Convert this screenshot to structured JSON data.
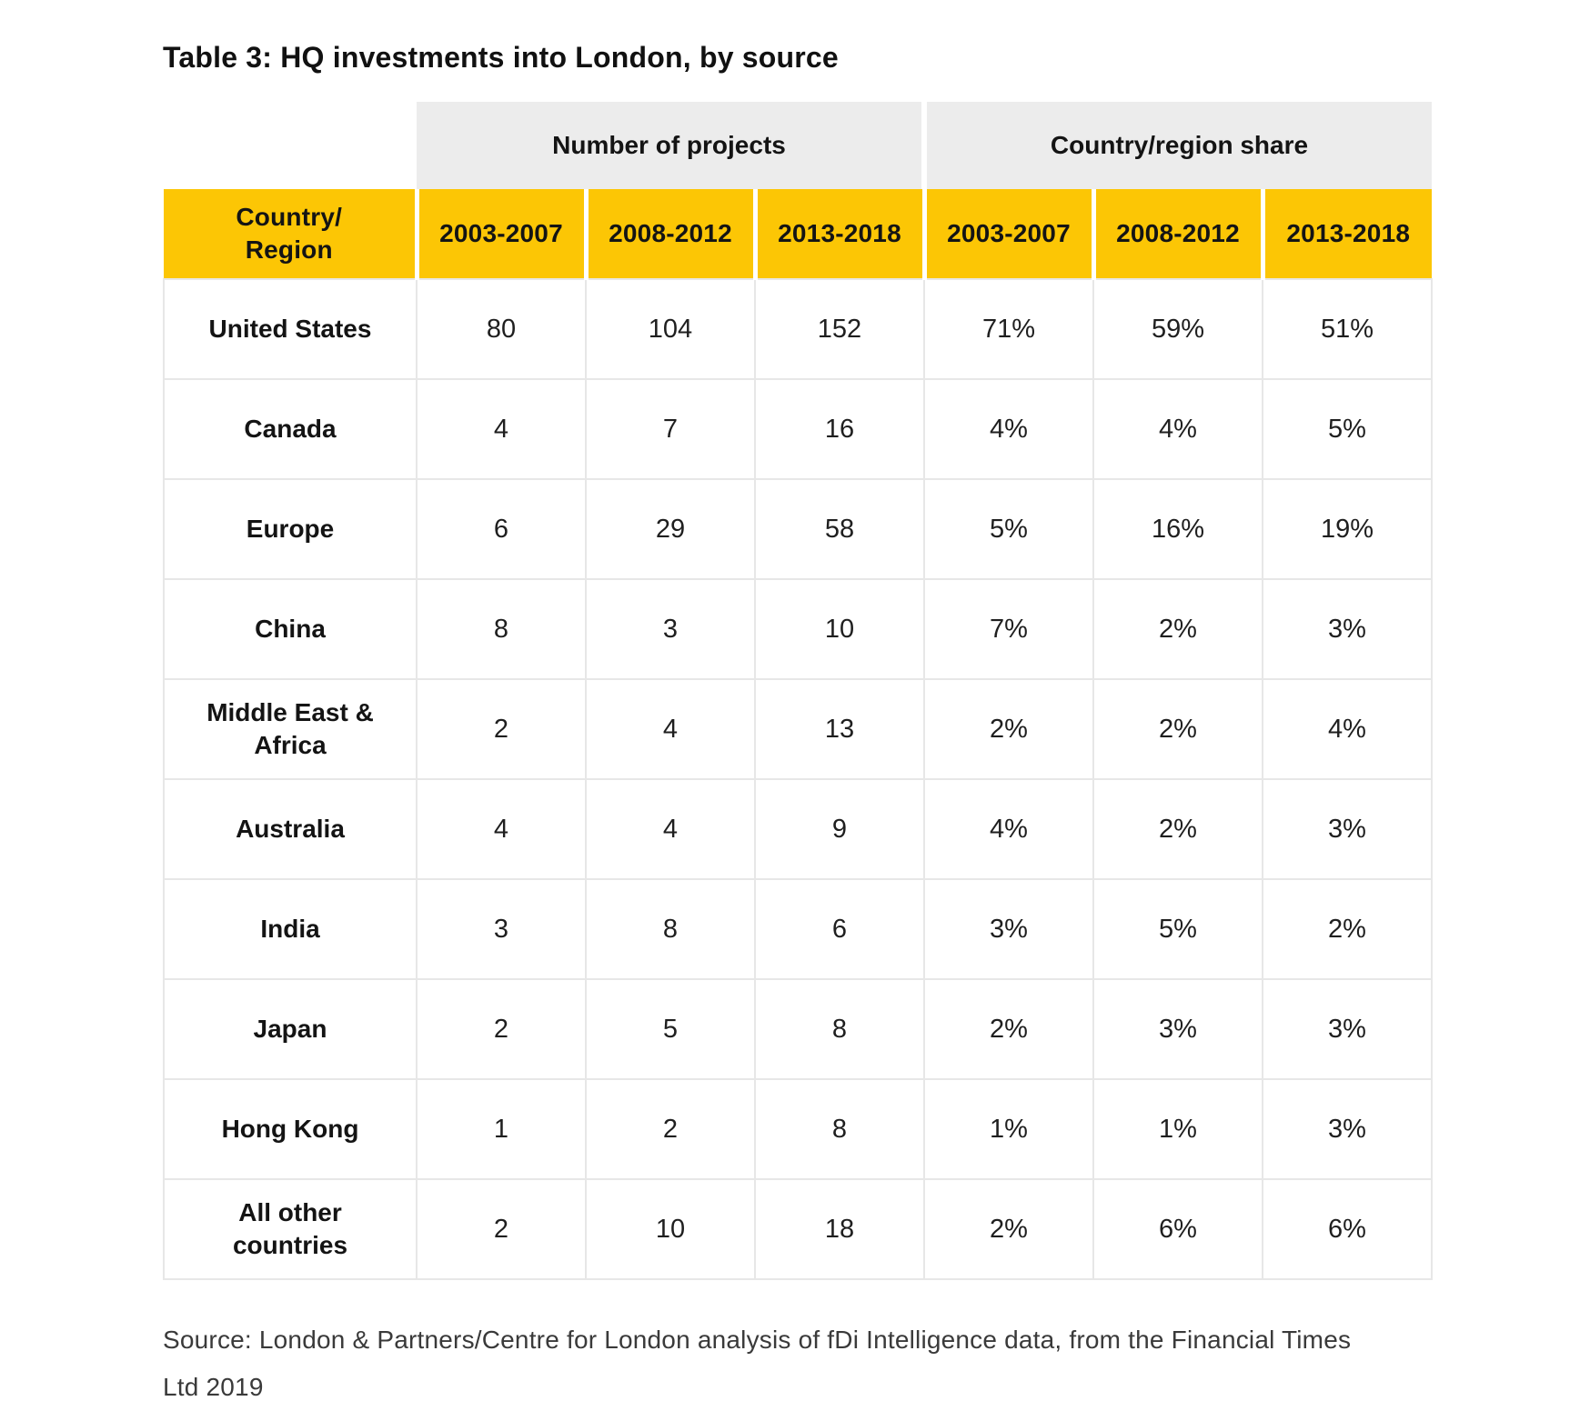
{
  "title": "Table 3: HQ investments into London, by source",
  "table": {
    "group_headers": [
      "Number of projects",
      "Country/region share"
    ],
    "corner_header_line1": "Country/",
    "corner_header_line2": "Region",
    "year_headers": [
      "2003-2007",
      "2008-2012",
      "2013-2018",
      "2003-2007",
      "2008-2012",
      "2013-2018"
    ],
    "rows": [
      {
        "country": "United States",
        "projects": [
          "80",
          "104",
          "152"
        ],
        "share": [
          "71%",
          "59%",
          "51%"
        ]
      },
      {
        "country": "Canada",
        "projects": [
          "4",
          "7",
          "16"
        ],
        "share": [
          "4%",
          "4%",
          "5%"
        ]
      },
      {
        "country": "Europe",
        "projects": [
          "6",
          "29",
          "58"
        ],
        "share": [
          "5%",
          "16%",
          "19%"
        ]
      },
      {
        "country": "China",
        "projects": [
          "8",
          "3",
          "10"
        ],
        "share": [
          "7%",
          "2%",
          "3%"
        ]
      },
      {
        "country": "Middle East & Africa",
        "projects": [
          "2",
          "4",
          "13"
        ],
        "share": [
          "2%",
          "2%",
          "4%"
        ]
      },
      {
        "country": "Australia",
        "projects": [
          "4",
          "4",
          "9"
        ],
        "share": [
          "4%",
          "2%",
          "3%"
        ]
      },
      {
        "country": "India",
        "projects": [
          "3",
          "8",
          "6"
        ],
        "share": [
          "3%",
          "5%",
          "2%"
        ]
      },
      {
        "country": "Japan",
        "projects": [
          "2",
          "5",
          "8"
        ],
        "share": [
          "2%",
          "3%",
          "3%"
        ]
      },
      {
        "country": "Hong Kong",
        "projects": [
          "1",
          "2",
          "8"
        ],
        "share": [
          "1%",
          "1%",
          "3%"
        ]
      },
      {
        "country": "All other countries",
        "projects": [
          "2",
          "10",
          "18"
        ],
        "share": [
          "2%",
          "6%",
          "6%"
        ]
      }
    ]
  },
  "source": "Source: London & Partners/Centre for London analysis of fDi Intelligence data, from the Financial Times Ltd 2019",
  "colors": {
    "header-yellow": "#FCC605",
    "group-gray": "#ECECEC",
    "body-border": "#E7E7E7"
  }
}
